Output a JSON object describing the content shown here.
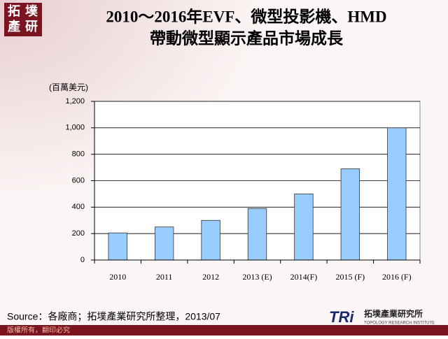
{
  "chart_data": {
    "type": "bar",
    "title": "2010～2016年EVF、微型投影機、HMD",
    "subtitle": "帶動微型顯示產品市場成長",
    "y_unit": "(百萬美元)",
    "categories": [
      "2010",
      "2011",
      "2012",
      "2013 (E)",
      "2014(F)",
      "2015 (F)",
      "2016 (F)"
    ],
    "values": [
      205,
      250,
      300,
      390,
      500,
      690,
      1000
    ],
    "color": "#99ccff",
    "ylim": [
      0,
      1200
    ],
    "yticks": [
      0,
      200,
      400,
      600,
      800,
      {
        "value": 1000,
        "label": "1,000"
      },
      {
        "value": 1200,
        "label": "1,200"
      }
    ],
    "grid": true
  },
  "logo": [
    "拓",
    "墣",
    "產",
    "研"
  ],
  "source": "Source：各廠商；拓墣產業研究所整理，2013/07",
  "footer": "版權所有，翻印必究",
  "brand": {
    "mark": "TRi",
    "name": "拓墣產業研究所",
    "english": "TOPOLOGY RESEARCH INSTITUTE"
  }
}
